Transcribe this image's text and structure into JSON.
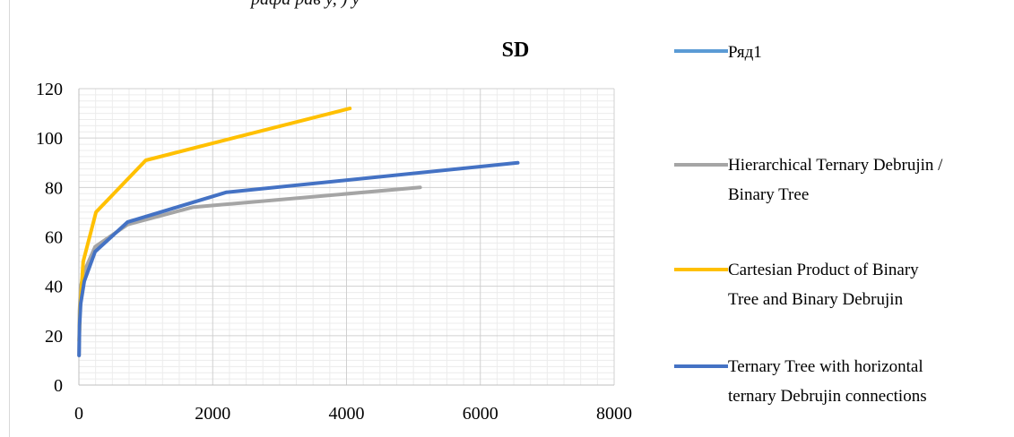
{
  "page_fragment": "рафа рав у, ) у",
  "chart_data": {
    "type": "line",
    "title": "SD",
    "xlabel": "",
    "ylabel": "",
    "xlim": [
      0,
      8000
    ],
    "ylim": [
      0,
      120
    ],
    "x_ticks": [
      0,
      2000,
      4000,
      6000,
      8000
    ],
    "y_ticks": [
      0,
      20,
      40,
      60,
      80,
      100,
      120
    ],
    "grid": true,
    "legend_position": "right",
    "series": [
      {
        "name": "Ряд1",
        "color": "#5b9bd5",
        "points": []
      },
      {
        "name": "Hierarchical Ternary Debrujin / Binary Tree",
        "color": "#a5a5a5",
        "points": [
          [
            3,
            12
          ],
          [
            10,
            30
          ],
          [
            27,
            40
          ],
          [
            81,
            46
          ],
          [
            243,
            56
          ],
          [
            729,
            65
          ],
          [
            1700,
            72
          ],
          [
            5100,
            80
          ]
        ]
      },
      {
        "name": "Cartesian Product of Binary Tree and Binary Debrujin",
        "color": "#ffc000",
        "points": [
          [
            4,
            18
          ],
          [
            16,
            30
          ],
          [
            64,
            50
          ],
          [
            256,
            70
          ],
          [
            1000,
            91
          ],
          [
            4050,
            112
          ]
        ]
      },
      {
        "name": "Ternary Tree with horizontal ternary Debrujin connections",
        "color": "#4472c4",
        "points": [
          [
            3,
            12
          ],
          [
            9,
            24
          ],
          [
            27,
            33
          ],
          [
            81,
            42
          ],
          [
            243,
            54
          ],
          [
            729,
            66
          ],
          [
            2200,
            78
          ],
          [
            6560,
            90
          ]
        ]
      }
    ]
  }
}
